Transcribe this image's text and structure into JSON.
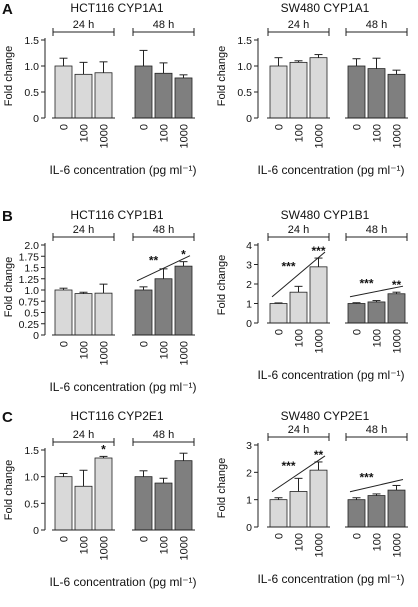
{
  "figure": {
    "panel_labels": [
      "A",
      "B",
      "C"
    ],
    "time_labels": [
      "24 h",
      "48 h"
    ],
    "ylabel": "Fold change",
    "xlabel": "IL-6 concentration (pg ml⁻¹)",
    "tick_labels": [
      "0",
      "100",
      "1000"
    ],
    "colors": {
      "bar_24h": "#d9d9d9",
      "bar_48h": "#7f7f7f",
      "stroke": "#222222"
    }
  },
  "chart_data": [
    {
      "type": "bar",
      "panel": "A",
      "title": "HCT116 CYP1A1",
      "ylim": [
        0,
        1.5
      ],
      "yticks": [
        "0",
        "0.5",
        "1.0",
        "1.5"
      ],
      "yticks_values": [
        0,
        0.5,
        1.0,
        1.5
      ],
      "categories": [
        "0",
        "100",
        "1000"
      ],
      "series": [
        {
          "name": "24 h",
          "values": [
            1.0,
            0.84,
            0.87
          ],
          "errors": [
            0.15,
            0.23,
            0.21
          ]
        },
        {
          "name": "48 h",
          "values": [
            1.0,
            0.86,
            0.77
          ],
          "errors": [
            0.3,
            0.2,
            0.06
          ]
        }
      ],
      "annotations": []
    },
    {
      "type": "bar",
      "panel": "A",
      "title": "SW480 CYP1A1",
      "ylim": [
        0,
        1.5
      ],
      "yticks": [
        "0",
        "0.5",
        "1.0",
        "1.5"
      ],
      "yticks_values": [
        0,
        0.5,
        1.0,
        1.5
      ],
      "categories": [
        "0",
        "100",
        "1000"
      ],
      "series": [
        {
          "name": "24 h",
          "values": [
            1.0,
            1.07,
            1.16
          ],
          "errors": [
            0.16,
            0.03,
            0.06
          ]
        },
        {
          "name": "48 h",
          "values": [
            1.0,
            0.95,
            0.84
          ],
          "errors": [
            0.14,
            0.2,
            0.08
          ]
        }
      ],
      "annotations": []
    },
    {
      "type": "bar",
      "panel": "B",
      "title": "HCT116 CYP1B1",
      "ylim": [
        0,
        2.0
      ],
      "yticks": [
        "0",
        "0.25",
        "0.5",
        "0.75",
        "1.0",
        "1.25",
        "1.5",
        "1.75",
        "2.0"
      ],
      "yticks_values": [
        0,
        0.25,
        0.5,
        0.75,
        1.0,
        1.25,
        1.5,
        1.75,
        2.0
      ],
      "categories": [
        "0",
        "100",
        "1000"
      ],
      "series": [
        {
          "name": "24 h",
          "values": [
            1.0,
            0.92,
            0.93
          ],
          "errors": [
            0.04,
            0.03,
            0.2
          ]
        },
        {
          "name": "48 h",
          "values": [
            1.0,
            1.25,
            1.53
          ],
          "errors": [
            0.07,
            0.22,
            0.1
          ]
        }
      ],
      "annotations": [
        {
          "series": 1,
          "from": 0,
          "to": 2,
          "label": "**"
        },
        {
          "series": 1,
          "at": 2,
          "label": "*"
        }
      ]
    },
    {
      "type": "bar",
      "panel": "B",
      "title": "SW480 CYP1B1",
      "ylim": [
        0,
        4
      ],
      "yticks": [
        "0",
        "1",
        "2",
        "3",
        "4"
      ],
      "yticks_values": [
        0,
        1,
        2,
        3,
        4
      ],
      "categories": [
        "0",
        "100",
        "1000"
      ],
      "series": [
        {
          "name": "24 h",
          "values": [
            1.0,
            1.58,
            2.88
          ],
          "errors": [
            0.03,
            0.3,
            0.45
          ]
        },
        {
          "name": "48 h",
          "values": [
            1.0,
            1.08,
            1.5
          ],
          "errors": [
            0.04,
            0.07,
            0.08
          ]
        }
      ],
      "annotations": [
        {
          "series": 0,
          "from": 0,
          "to": 2,
          "label": "***"
        },
        {
          "series": 0,
          "at": 2,
          "label": "***"
        },
        {
          "series": 1,
          "from": 0,
          "to": 2,
          "label": "***"
        },
        {
          "series": 1,
          "at": 2,
          "label": "**"
        }
      ]
    },
    {
      "type": "bar",
      "panel": "C",
      "title": "HCT116 CYP2E1",
      "ylim": [
        0,
        1.5
      ],
      "yticks": [
        "0",
        "0.5",
        "1.0",
        "1.5"
      ],
      "yticks_values": [
        0,
        0.5,
        1.0,
        1.5
      ],
      "categories": [
        "0",
        "100",
        "1000"
      ],
      "series": [
        {
          "name": "24 h",
          "values": [
            1.0,
            0.82,
            1.35
          ],
          "errors": [
            0.06,
            0.3,
            0.03
          ]
        },
        {
          "name": "48 h",
          "values": [
            1.0,
            0.88,
            1.3
          ],
          "errors": [
            0.11,
            0.09,
            0.14
          ]
        }
      ],
      "annotations": [
        {
          "series": 0,
          "at": 2,
          "label": "*"
        }
      ]
    },
    {
      "type": "bar",
      "panel": "C",
      "title": "SW480 CYP2E1",
      "ylim": [
        0,
        3
      ],
      "yticks": [
        "0",
        "1",
        "2",
        "3"
      ],
      "yticks_values": [
        0,
        1,
        2,
        3
      ],
      "categories": [
        "0",
        "100",
        "1000"
      ],
      "series": [
        {
          "name": "24 h",
          "values": [
            1.0,
            1.3,
            2.08
          ],
          "errors": [
            0.07,
            0.48,
            0.3
          ]
        },
        {
          "name": "48 h",
          "values": [
            1.0,
            1.15,
            1.35
          ],
          "errors": [
            0.07,
            0.06,
            0.17
          ]
        }
      ],
      "annotations": [
        {
          "series": 0,
          "from": 0,
          "to": 2,
          "label": "***"
        },
        {
          "series": 0,
          "at": 2,
          "label": "**"
        },
        {
          "series": 1,
          "from": 0,
          "to": 2,
          "label": "***"
        }
      ]
    }
  ]
}
